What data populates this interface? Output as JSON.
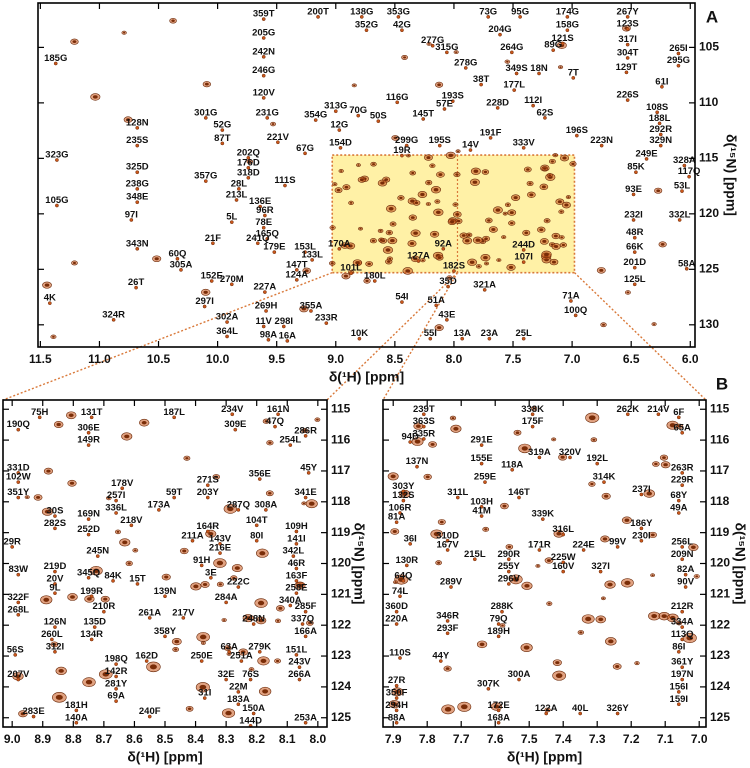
{
  "chart_data": [
    {
      "type": "scatter",
      "panel": "A",
      "xlabel": "δ(¹H) [ppm]",
      "ylabel": "δ(¹⁵N) [ppm]",
      "color": "#c8561a",
      "xlim": [
        11.52,
        5.96
      ],
      "ylim": [
        101.0,
        132.0
      ],
      "xticks": [
        11.5,
        {
          "value": 11,
          "label": "11.0"
        },
        10.5,
        {
          "value": 10,
          "label": "10.0"
        },
        9.5,
        {
          "value": 9,
          "label": "9.0"
        },
        8.5,
        {
          "value": 8,
          "label": "8.0"
        },
        7.5,
        {
          "value": 7,
          "label": "7.0"
        },
        6.5,
        {
          "value": 6,
          "label": "6.0"
        }
      ],
      "yticks": [
        105,
        110,
        115,
        120,
        125,
        130
      ],
      "labels": [
        "359T",
        "200T",
        "138G",
        "353G",
        "73G",
        "95G",
        "174G",
        "267Y",
        "205G",
        "352G",
        "42G",
        "158G",
        "123S",
        "242N",
        "204G",
        "277G",
        "121S",
        "317I",
        "246G",
        "315G",
        "264G",
        "89G",
        "304T",
        "265I",
        "295G",
        "185G",
        "278G",
        "349S",
        "18N",
        "7T",
        "129T",
        "61I",
        "120V",
        "38T",
        "177L",
        "226S",
        "116G",
        "193S",
        "228D",
        "112I",
        "301G",
        "313G",
        "57E",
        "62S",
        "108S",
        "231G",
        "354G",
        "70G",
        "50S",
        "188L",
        "128N",
        "52G",
        "12G",
        "145T",
        "196S",
        "292R",
        "235S",
        "87T",
        "221V",
        "299G",
        "195S",
        "191F",
        "329N",
        "323G",
        "202Q",
        "67G",
        "154D",
        "19R",
        "14V",
        "333V",
        "223N",
        "325D",
        "176D",
        "249E",
        "328A",
        "357G",
        "318D",
        "85K",
        "117Q",
        "238G",
        "28L",
        "111S",
        "213L",
        "53L",
        "348E",
        "136E",
        "96R",
        "93E",
        "105G",
        "78E",
        "5L",
        "97I",
        "332L",
        "232I",
        "165Q",
        "48R",
        "343N",
        "21F",
        "241Q",
        "66K",
        "60Q",
        "179E",
        "153L",
        "305A",
        "270M",
        "152E",
        "201D",
        "92A",
        "170A",
        "244D",
        "107I",
        "127A",
        "133L",
        "101L",
        "125L",
        "26T",
        "147T",
        "124A",
        "182S",
        "35D",
        "58A",
        "180L",
        "321A",
        "297I",
        "227A",
        "269H",
        "54I",
        "51A",
        "71A",
        "4K",
        "11V",
        "302A",
        "43E",
        "100Q",
        "324R",
        "355A",
        "233R",
        "298I",
        "364L",
        "98A",
        "16A",
        "10K",
        "55I",
        "13A",
        "23A",
        "25L"
      ],
      "x": [
        9.61,
        9.15,
        8.78,
        8.47,
        7.71,
        7.44,
        7.04,
        6.53,
        9.61,
        8.74,
        8.44,
        7.04,
        6.53,
        9.61,
        7.61,
        8.18,
        7.08,
        6.53,
        9.61,
        8.06,
        7.51,
        7.16,
        6.53,
        6.1,
        6.1,
        11.37,
        7.9,
        7.47,
        7.28,
        6.99,
        6.54,
        6.24,
        9.61,
        7.77,
        7.49,
        6.53,
        8.48,
        8.01,
        7.63,
        7.33,
        10.1,
        9.0,
        8.08,
        7.23,
        6.28,
        9.58,
        9.17,
        8.81,
        8.64,
        6.26,
        10.68,
        9.96,
        8.97,
        8.26,
        6.96,
        6.25,
        10.68,
        9.96,
        9.49,
        8.4,
        8.12,
        7.69,
        6.25,
        11.36,
        9.74,
        9.26,
        8.96,
        8.44,
        7.86,
        7.41,
        6.75,
        10.68,
        9.74,
        6.37,
        6.05,
        10.1,
        9.74,
        6.46,
        6.01,
        10.68,
        9.82,
        9.43,
        9.84,
        6.07,
        10.68,
        9.64,
        9.6,
        6.48,
        11.36,
        9.61,
        9.88,
        10.73,
        6.09,
        6.48,
        9.58,
        6.47,
        10.68,
        10.04,
        9.66,
        6.47,
        10.34,
        9.52,
        9.26,
        10.31,
        9.88,
        10.05,
        6.47,
        8.09,
        8.97,
        7.41,
        7.41,
        8.3,
        9.2,
        8.87,
        6.47,
        10.69,
        9.33,
        9.33,
        8.0,
        8.05,
        6.03,
        8.67,
        7.74,
        10.11,
        9.6,
        9.59,
        8.44,
        8.15,
        7.01,
        11.42,
        9.61,
        9.92,
        8.06,
        6.97,
        10.88,
        9.21,
        9.08,
        9.44,
        9.92,
        9.57,
        9.41,
        8.8,
        8.2,
        7.93,
        7.7,
        7.41
      ],
      "y": [
        102.0,
        101.8,
        101.8,
        101.8,
        101.8,
        101.8,
        101.8,
        101.8,
        103.7,
        103.0,
        103.0,
        103.0,
        102.9,
        105.4,
        103.4,
        104.4,
        104.2,
        104.3,
        107.1,
        105.0,
        105.0,
        104.8,
        105.5,
        105.1,
        106.2,
        106.0,
        106.4,
        106.9,
        106.9,
        107.3,
        106.8,
        108.1,
        109.1,
        107.9,
        108.4,
        109.3,
        109.5,
        109.4,
        110.0,
        109.8,
        110.9,
        110.3,
        110.1,
        110.9,
        110.4,
        110.9,
        111.1,
        110.7,
        111.2,
        111.4,
        111.8,
        112.0,
        112.0,
        111.0,
        112.5,
        112.4,
        113.4,
        113.2,
        113.1,
        113.4,
        113.4,
        112.7,
        113.4,
        114.7,
        114.5,
        114.1,
        113.6,
        114.3,
        113.8,
        113.6,
        113.4,
        115.8,
        115.4,
        114.6,
        115.2,
        116.6,
        116.3,
        115.8,
        116.2,
        117.3,
        117.3,
        117.0,
        118.3,
        117.5,
        118.5,
        118.9,
        119.7,
        117.8,
        118.8,
        120.8,
        120.3,
        120.1,
        120.1,
        120.1,
        121.8,
        121.7,
        122.7,
        122.2,
        122.2,
        123.0,
        123.6,
        123.0,
        123.0,
        124.6,
        125.9,
        125.6,
        124.4,
        122.7,
        122.7,
        122.8,
        123.9,
        123.8,
        123.7,
        124.9,
        125.9,
        126.2,
        124.6,
        125.5,
        124.7,
        126.1,
        124.5,
        125.6,
        126.4,
        127.9,
        126.6,
        128.3,
        127.5,
        127.8,
        127.4,
        127.6,
        129.7,
        129.3,
        129.1,
        128.7,
        129.1,
        128.3,
        129.4,
        129.7,
        130.6,
        130.9,
        131.0,
        130.8,
        130.8,
        130.8,
        130.8,
        130.8
      ]
    },
    {
      "type": "scatter",
      "xlabel": "δ(¹H) [ppm]",
      "ylabel": "δ(¹⁵N) [ppm]",
      "color": "#c8561a",
      "xlim": [
        9.03,
        7.97
      ],
      "ylim": [
        114.7,
        125.3
      ],
      "xticks": [
        {
          "value": 9,
          "label": "9.0"
        },
        8.9,
        8.8,
        8.7,
        8.6,
        8.5,
        8.4,
        8.3,
        8.2,
        8.1,
        {
          "value": 8,
          "label": "8.0"
        }
      ],
      "yticks": [
        115,
        116,
        117,
        118,
        119,
        120,
        121,
        122,
        123,
        124,
        125
      ],
      "labels": [
        "75H",
        "131T",
        "187L",
        "234V",
        "161N",
        "190Q",
        "306E",
        "309E",
        "47Q",
        "286R",
        "149R",
        "254L",
        "331D",
        "102W",
        "351Y",
        "356E",
        "45Y",
        "178V",
        "271S",
        "257I",
        "59T",
        "203Y",
        "341E",
        "336L",
        "173A",
        "287Q",
        "308A",
        "30S",
        "282S",
        "169N",
        "218V",
        "164R",
        "104T",
        "252D",
        "109H",
        "211A",
        "143V",
        "80I",
        "141I",
        "29R",
        "245N",
        "216E",
        "342L",
        "91H",
        "46R",
        "83W",
        "219D",
        "345Q",
        "84K",
        "15T",
        "3E",
        "163F",
        "20V",
        "222C",
        "322F",
        "9L",
        "199R",
        "210R",
        "139N",
        "258E",
        "340A",
        "268L",
        "284A",
        "285F",
        "261A",
        "217V",
        "248N",
        "337Q",
        "126N",
        "135D",
        "358Y",
        "166A",
        "260L",
        "134R",
        "63A",
        "56S",
        "162D",
        "250E",
        "251A",
        "279K",
        "151L",
        "312I",
        "198Q",
        "142R",
        "243V",
        "281Y",
        "76S",
        "32E",
        "22M",
        "266A",
        "207V",
        "69A",
        "31I",
        "183A",
        "181H",
        "240F",
        "150A",
        "144D",
        "253A",
        "283E",
        "140A"
      ],
      "x": [
        8.91,
        8.74,
        8.47,
        8.28,
        8.13,
        8.98,
        8.75,
        8.27,
        8.14,
        8.04,
        8.75,
        8.09,
        8.98,
        8.98,
        8.98,
        8.19,
        8.03,
        8.64,
        8.36,
        8.66,
        8.47,
        8.36,
        8.04,
        8.66,
        8.52,
        8.26,
        8.17,
        8.86,
        8.86,
        8.75,
        8.61,
        8.36,
        8.2,
        8.75,
        8.07,
        8.41,
        8.32,
        8.2,
        8.07,
        9.0,
        8.72,
        8.32,
        8.08,
        8.38,
        8.07,
        8.98,
        8.86,
        8.75,
        8.67,
        8.59,
        8.35,
        8.07,
        8.86,
        8.26,
        8.98,
        8.86,
        8.74,
        8.7,
        8.5,
        8.07,
        8.09,
        8.98,
        8.3,
        8.04,
        8.55,
        8.44,
        8.21,
        8.05,
        8.86,
        8.73,
        8.5,
        8.04,
        8.87,
        8.74,
        8.29,
        8.99,
        8.56,
        8.38,
        8.25,
        8.19,
        8.07,
        8.86,
        8.66,
        8.66,
        8.06,
        8.66,
        8.22,
        8.3,
        8.26,
        8.06,
        8.98,
        8.66,
        8.37,
        8.26,
        8.79,
        8.55,
        8.21,
        8.22,
        8.04,
        8.93,
        8.79
      ],
      "y": [
        115.1,
        115.1,
        115.1,
        115.0,
        115.0,
        115.5,
        115.6,
        115.5,
        115.4,
        115.7,
        116.0,
        116.0,
        116.9,
        117.2,
        117.7,
        117.1,
        116.9,
        117.4,
        117.3,
        117.8,
        117.7,
        117.7,
        117.7,
        118.2,
        118.1,
        118.1,
        118.1,
        118.3,
        118.7,
        118.4,
        118.6,
        118.8,
        118.6,
        118.9,
        118.8,
        119.1,
        119.2,
        119.1,
        119.2,
        119.3,
        119.6,
        119.5,
        119.6,
        119.9,
        120.0,
        120.2,
        120.1,
        120.3,
        120.4,
        120.5,
        120.3,
        120.4,
        120.5,
        120.6,
        121.1,
        120.8,
        120.9,
        121.4,
        120.9,
        120.8,
        121.2,
        121.5,
        121.1,
        121.4,
        121.6,
        121.6,
        121.8,
        121.8,
        121.9,
        121.9,
        122.2,
        122.2,
        122.3,
        122.3,
        122.7,
        122.8,
        123.0,
        123.0,
        123.0,
        122.7,
        122.8,
        122.7,
        123.1,
        123.5,
        123.2,
        123.9,
        123.6,
        123.6,
        124.0,
        123.6,
        123.6,
        124.3,
        124.2,
        124.4,
        124.6,
        124.8,
        124.7,
        125.1,
        125.0,
        124.8,
        125.0
      ]
    },
    {
      "type": "scatter",
      "panel": "B",
      "xlabel": "δ(¹H) [ppm]",
      "ylabel": "δ(¹⁵N) [ppm]",
      "color": "#c8561a",
      "xlim": [
        7.93,
        6.98
      ],
      "ylim": [
        114.7,
        125.3
      ],
      "xticks": [
        7.9,
        7.8,
        7.7,
        7.6,
        7.5,
        7.4,
        7.3,
        7.2,
        7.1,
        {
          "value": 7,
          "label": "7.0"
        }
      ],
      "yticks": [
        115,
        116,
        117,
        118,
        119,
        120,
        121,
        122,
        123,
        124,
        125
      ],
      "labels": [
        "239T",
        "338K",
        "262K",
        "214V",
        "6F",
        "363S",
        "175F",
        "65A",
        "94D",
        "335R",
        "291E",
        "137N",
        "155E",
        "319A",
        "320V",
        "192L",
        "263R",
        "303Y",
        "259E",
        "118A",
        "314K",
        "229R",
        "132S",
        "311L",
        "146T",
        "237I",
        "68Y",
        "106R",
        "103H",
        "49A",
        "81A",
        "41M",
        "339K",
        "186Y",
        "36I",
        "310D",
        "316L",
        "230I",
        "167V",
        "215L",
        "290R",
        "171R",
        "224E",
        "99V",
        "256L",
        "130R",
        "255Y",
        "225W",
        "160V",
        "327I",
        "209N",
        "64Q",
        "296V",
        "82A",
        "289V",
        "90V",
        "74L",
        "360D",
        "288K",
        "212R",
        "220A",
        "346R",
        "79Q",
        "293F",
        "189H",
        "334A",
        "113Q",
        "110S",
        "44Y",
        "86I",
        "300A",
        "361Y",
        "27R",
        "307K",
        "197N",
        "350F",
        "156I",
        "294H",
        "172E",
        "122A",
        "40L",
        "326Y",
        "159I",
        "88A",
        "168A"
      ],
      "x": [
        7.81,
        7.49,
        7.21,
        7.12,
        7.06,
        7.81,
        7.49,
        7.05,
        7.85,
        7.81,
        7.64,
        7.83,
        7.64,
        7.47,
        7.38,
        7.3,
        7.05,
        7.87,
        7.63,
        7.55,
        7.28,
        7.05,
        7.87,
        7.71,
        7.53,
        7.17,
        7.06,
        7.88,
        7.64,
        7.06,
        7.89,
        7.64,
        7.46,
        7.17,
        7.85,
        7.74,
        7.4,
        7.17,
        7.74,
        7.66,
        7.56,
        7.47,
        7.34,
        7.24,
        7.05,
        7.86,
        7.56,
        7.4,
        7.4,
        7.29,
        7.05,
        7.87,
        7.56,
        7.04,
        7.73,
        7.04,
        7.88,
        7.89,
        7.58,
        7.05,
        7.89,
        7.74,
        7.59,
        7.74,
        7.59,
        7.05,
        7.05,
        7.88,
        7.76,
        7.06,
        7.53,
        7.05,
        7.89,
        7.62,
        7.05,
        7.89,
        7.06,
        7.89,
        7.59,
        7.45,
        7.35,
        7.24,
        7.06,
        7.89,
        7.59
      ],
      "y": [
        115.0,
        115.0,
        115.0,
        115.0,
        115.1,
        115.4,
        115.4,
        115.6,
        115.9,
        115.8,
        116.0,
        116.7,
        116.6,
        116.4,
        116.4,
        116.6,
        116.9,
        117.5,
        117.2,
        116.8,
        117.2,
        117.3,
        117.8,
        117.7,
        117.7,
        117.6,
        117.8,
        118.2,
        118.0,
        118.2,
        118.5,
        118.3,
        118.4,
        118.7,
        119.2,
        119.1,
        118.9,
        119.1,
        119.4,
        119.7,
        119.7,
        119.4,
        119.4,
        119.3,
        119.3,
        119.9,
        120.1,
        119.8,
        120.1,
        120.1,
        119.7,
        120.4,
        120.5,
        120.2,
        120.6,
        120.6,
        120.9,
        121.4,
        121.4,
        121.4,
        121.8,
        121.7,
        121.8,
        122.1,
        122.2,
        121.9,
        122.3,
        122.9,
        123.0,
        122.7,
        123.6,
        123.2,
        123.8,
        123.9,
        123.6,
        124.2,
        124.0,
        124.6,
        124.6,
        124.7,
        124.7,
        124.7,
        124.4,
        125.0,
        125.0
      ]
    }
  ]
}
